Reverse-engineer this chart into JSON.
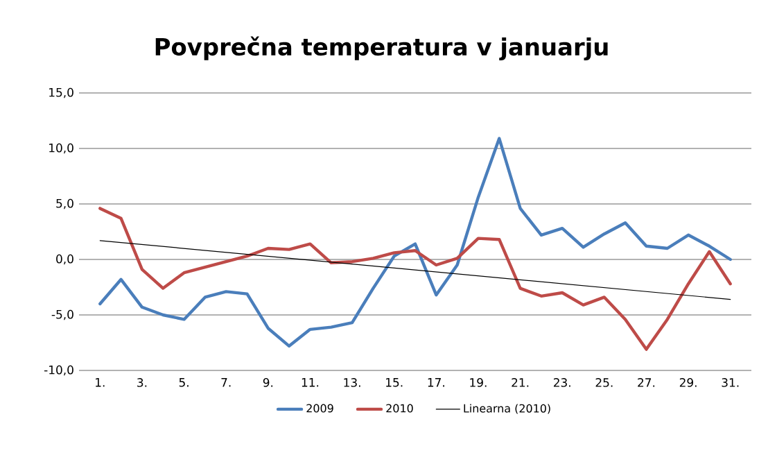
{
  "chart_data": {
    "type": "line",
    "title": "Povprečna temperatura v januarju",
    "categories": [
      "1.",
      null,
      "3.",
      null,
      "5.",
      null,
      "7.",
      null,
      "9.",
      null,
      "11.",
      null,
      "13.",
      null,
      "15.",
      null,
      "17.",
      null,
      "19.",
      null,
      "21.",
      null,
      "23.",
      null,
      "25.",
      null,
      "27.",
      null,
      "29.",
      null,
      "31."
    ],
    "series": [
      {
        "name": "2009",
        "color": "#4a7ebb",
        "values": [
          -4.0,
          -1.8,
          -4.3,
          -5.0,
          -5.4,
          -3.4,
          -2.9,
          -3.1,
          -6.2,
          -7.8,
          -6.3,
          -6.1,
          -5.7,
          -2.6,
          0.3,
          1.4,
          -3.2,
          -0.5,
          5.6,
          10.9,
          4.6,
          2.2,
          2.8,
          1.1,
          2.3,
          3.3,
          1.2,
          1.0,
          2.2,
          1.2,
          0.0
        ]
      },
      {
        "name": "2010",
        "color": "#be4b48",
        "values": [
          4.6,
          3.7,
          -0.9,
          -2.6,
          -1.2,
          -0.7,
          -0.2,
          0.3,
          1.0,
          0.9,
          1.4,
          -0.3,
          -0.2,
          0.1,
          0.6,
          0.8,
          -0.5,
          0.1,
          1.9,
          1.8,
          -2.6,
          -3.3,
          -3.0,
          -4.1,
          -3.4,
          -5.4,
          -8.1,
          -5.4,
          -2.2,
          0.7,
          -2.2
        ]
      },
      {
        "name": "Linearna (2010)",
        "color": "#000000",
        "type": "line",
        "x": [
          "1.",
          "31."
        ],
        "values": [
          1.7,
          -3.6
        ]
      }
    ],
    "ylim": [
      -10,
      15
    ],
    "yticks": [
      {
        "value": -10,
        "label": "-10,0"
      },
      {
        "value": -5,
        "label": "-5,0"
      },
      {
        "value": 0,
        "label": "0,0"
      },
      {
        "value": 5,
        "label": "5,0"
      },
      {
        "value": 10,
        "label": "10,0"
      },
      {
        "value": 15,
        "label": "15,0"
      }
    ],
    "grid": "y",
    "legend": "bottom",
    "marker": "none",
    "line_style": "solid"
  }
}
